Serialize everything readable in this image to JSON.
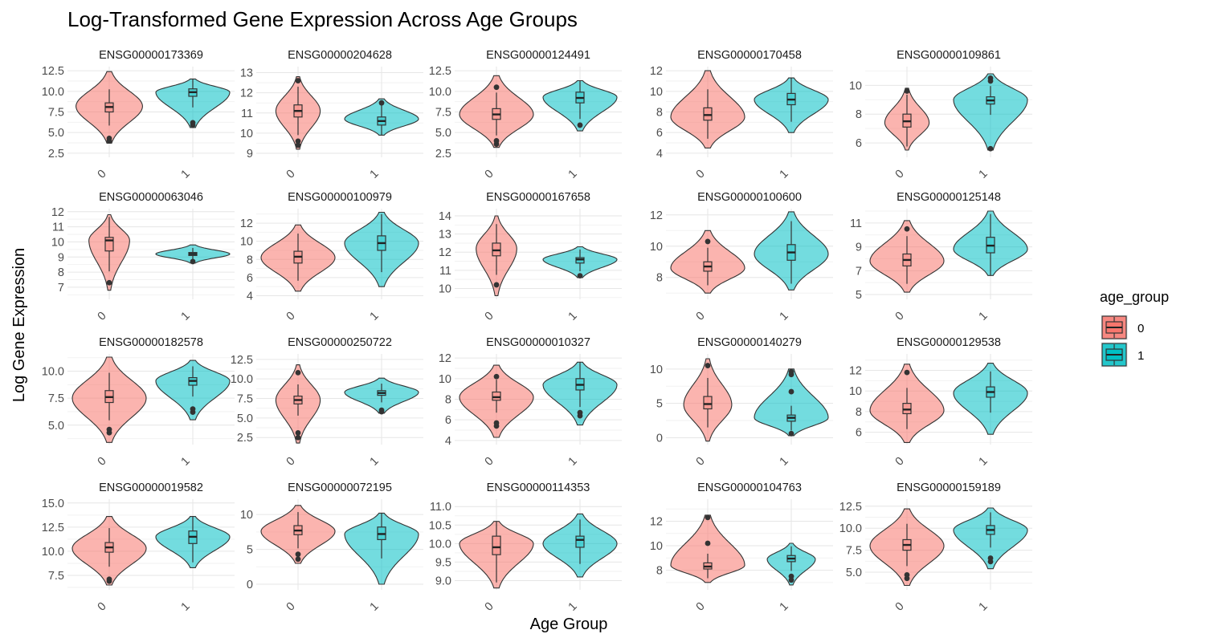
{
  "chart_data": {
    "type": "violin",
    "title": "Log-Transformed Gene Expression Across Age Groups",
    "xlabel": "Age Group",
    "ylabel": "Log Gene Expression",
    "categories": [
      "0",
      "1"
    ],
    "legend": {
      "title": "age_group",
      "position": "right",
      "entries": [
        {
          "label": "0",
          "color": "#F8766D"
        },
        {
          "label": "1",
          "color": "#00BFC4"
        }
      ]
    },
    "panels": [
      {
        "gene": "ENSG00000173369",
        "ylim": [
          2,
          13
        ],
        "ticks": [
          "2.5",
          "5.0",
          "7.5",
          "10.0",
          "12.5"
        ],
        "tick_values": [
          2.5,
          5,
          7.5,
          10,
          12.5
        ],
        "groups": [
          {
            "min": 3.7,
            "max": 12.4,
            "q1": 7.5,
            "median": 8.1,
            "q3": 8.6,
            "peak": 8.2,
            "width": 0.9,
            "outliers": [
              4.0,
              4.3
            ]
          },
          {
            "min": 5.6,
            "max": 11.5,
            "q1": 9.4,
            "median": 9.9,
            "q3": 10.3,
            "peak": 9.9,
            "width": 1.0,
            "outliers": [
              5.9,
              6.2
            ]
          }
        ]
      },
      {
        "gene": "ENSG00000204628",
        "ylim": [
          8.8,
          13.3
        ],
        "ticks": [
          "9",
          "10",
          "11",
          "12",
          "13"
        ],
        "tick_values": [
          9,
          10,
          11,
          12,
          13
        ],
        "groups": [
          {
            "min": 9.2,
            "max": 12.8,
            "q1": 10.8,
            "median": 11.1,
            "q3": 11.4,
            "peak": 11.1,
            "width": 0.6,
            "outliers": [
              9.4,
              9.6,
              12.6
            ]
          },
          {
            "min": 9.9,
            "max": 11.7,
            "q1": 10.4,
            "median": 10.6,
            "q3": 10.8,
            "peak": 10.7,
            "width": 1.0,
            "outliers": [
              11.5
            ]
          }
        ]
      },
      {
        "gene": "ENSG00000124491",
        "ylim": [
          2,
          13
        ],
        "ticks": [
          "2.5",
          "5.0",
          "7.5",
          "10.0",
          "12.5"
        ],
        "tick_values": [
          2.5,
          5,
          7.5,
          10,
          12.5
        ],
        "groups": [
          {
            "min": 3.2,
            "max": 11.9,
            "q1": 6.6,
            "median": 7.2,
            "q3": 7.9,
            "peak": 7.2,
            "width": 1.0,
            "outliers": [
              3.6,
              4.0,
              10.5
            ]
          },
          {
            "min": 5.2,
            "max": 11.3,
            "q1": 8.6,
            "median": 9.2,
            "q3": 9.9,
            "peak": 9.3,
            "width": 1.0,
            "outliers": [
              5.9
            ]
          }
        ]
      },
      {
        "gene": "ENSG00000170458",
        "ylim": [
          3.6,
          12.4
        ],
        "ticks": [
          "4",
          "6",
          "8",
          "10",
          "12"
        ],
        "tick_values": [
          4,
          6,
          8,
          10,
          12
        ],
        "groups": [
          {
            "min": 4.5,
            "max": 12.0,
            "q1": 7.2,
            "median": 7.7,
            "q3": 8.4,
            "peak": 7.5,
            "width": 1.0,
            "outliers": []
          },
          {
            "min": 6.0,
            "max": 11.3,
            "q1": 8.7,
            "median": 9.2,
            "q3": 9.8,
            "peak": 9.2,
            "width": 1.0,
            "outliers": []
          }
        ]
      },
      {
        "gene": "ENSG00000109861",
        "ylim": [
          5.0,
          11.3
        ],
        "ticks": [
          "6",
          "8",
          "10"
        ],
        "tick_values": [
          6,
          8,
          10
        ],
        "groups": [
          {
            "min": 5.5,
            "max": 9.8,
            "q1": 7.1,
            "median": 7.5,
            "q3": 8.0,
            "peak": 7.4,
            "width": 0.6,
            "outliers": [
              9.6
            ]
          },
          {
            "min": 5.5,
            "max": 10.8,
            "q1": 8.7,
            "median": 8.95,
            "q3": 9.2,
            "peak": 9.0,
            "width": 1.0,
            "outliers": [
              5.6,
              10.3,
              10.5
            ]
          }
        ]
      },
      {
        "gene": "ENSG00000063046",
        "ylim": [
          6.2,
          12.2
        ],
        "ticks": [
          "7",
          "8",
          "9",
          "10",
          "11",
          "12"
        ],
        "tick_values": [
          7,
          8,
          9,
          10,
          11,
          12
        ],
        "groups": [
          {
            "min": 6.8,
            "max": 11.8,
            "q1": 9.4,
            "median": 10.1,
            "q3": 10.3,
            "peak": 10.1,
            "width": 0.55,
            "outliers": [
              7.3
            ]
          },
          {
            "min": 8.6,
            "max": 9.8,
            "q1": 9.1,
            "median": 9.2,
            "q3": 9.3,
            "peak": 9.2,
            "width": 1.0,
            "outliers": [
              8.7
            ]
          }
        ]
      },
      {
        "gene": "ENSG00000100979",
        "ylim": [
          3.6,
          13.6
        ],
        "ticks": [
          "4",
          "6",
          "8",
          "10",
          "12"
        ],
        "tick_values": [
          4,
          6,
          8,
          10,
          12
        ],
        "groups": [
          {
            "min": 4.5,
            "max": 11.8,
            "q1": 7.6,
            "median": 8.3,
            "q3": 8.9,
            "peak": 8.2,
            "width": 1.0,
            "outliers": []
          },
          {
            "min": 5.0,
            "max": 13.2,
            "q1": 9.0,
            "median": 9.8,
            "q3": 10.6,
            "peak": 9.8,
            "width": 1.0,
            "outliers": []
          }
        ]
      },
      {
        "gene": "ENSG00000167658",
        "ylim": [
          9.4,
          14.4
        ],
        "ticks": [
          "10",
          "11",
          "12",
          "13",
          "14"
        ],
        "tick_values": [
          10,
          11,
          12,
          13,
          14
        ],
        "groups": [
          {
            "min": 9.6,
            "max": 14.0,
            "q1": 11.8,
            "median": 12.1,
            "q3": 12.5,
            "peak": 12.2,
            "width": 0.55,
            "outliers": [
              10.2
            ]
          },
          {
            "min": 10.6,
            "max": 12.3,
            "q1": 11.4,
            "median": 11.6,
            "q3": 11.7,
            "peak": 11.6,
            "width": 1.0,
            "outliers": [
              10.7
            ]
          }
        ]
      },
      {
        "gene": "ENSG00000100600",
        "ylim": [
          6.6,
          12.4
        ],
        "ticks": [
          "8",
          "10",
          "12"
        ],
        "tick_values": [
          8,
          10,
          12
        ],
        "groups": [
          {
            "min": 7.0,
            "max": 11.0,
            "q1": 8.4,
            "median": 8.7,
            "q3": 9.0,
            "peak": 8.6,
            "width": 1.0,
            "outliers": [
              10.3
            ]
          },
          {
            "min": 7.2,
            "max": 12.2,
            "q1": 9.1,
            "median": 9.6,
            "q3": 10.1,
            "peak": 9.5,
            "width": 1.0,
            "outliers": []
          }
        ]
      },
      {
        "gene": "ENSG00000125148",
        "ylim": [
          4.6,
          12.2
        ],
        "ticks": [
          "5",
          "7",
          "9",
          "11"
        ],
        "tick_values": [
          5,
          7,
          9,
          11
        ],
        "groups": [
          {
            "min": 5.2,
            "max": 11.2,
            "q1": 7.4,
            "median": 7.9,
            "q3": 8.4,
            "peak": 7.8,
            "width": 1.0,
            "outliers": [
              10.5
            ]
          },
          {
            "min": 6.6,
            "max": 12.0,
            "q1": 8.5,
            "median": 9.1,
            "q3": 9.8,
            "peak": 8.8,
            "width": 1.0,
            "outliers": []
          }
        ]
      },
      {
        "gene": "ENSG00000182578",
        "ylim": [
          3.2,
          11.6
        ],
        "ticks": [
          "5.0",
          "7.5",
          "10.0"
        ],
        "tick_values": [
          5,
          7.5,
          10
        ],
        "groups": [
          {
            "min": 3.4,
            "max": 11.3,
            "q1": 7.1,
            "median": 7.6,
            "q3": 8.2,
            "peak": 7.5,
            "width": 1.0,
            "outliers": [
              4.3,
              4.6
            ]
          },
          {
            "min": 5.5,
            "max": 11.0,
            "q1": 8.7,
            "median": 9.1,
            "q3": 9.4,
            "peak": 9.1,
            "width": 1.0,
            "outliers": [
              6.2,
              6.5
            ]
          }
        ]
      },
      {
        "gene": "ENSG00000250722",
        "ylim": [
          1.6,
          13.2
        ],
        "ticks": [
          "2.5",
          "5.0",
          "7.5",
          "10.0",
          "12.5"
        ],
        "tick_values": [
          2.5,
          5,
          7.5,
          10,
          12.5
        ],
        "groups": [
          {
            "min": 1.8,
            "max": 11.8,
            "q1": 6.8,
            "median": 7.3,
            "q3": 7.8,
            "peak": 7.3,
            "width": 0.6,
            "outliers": [
              2.5,
              3.1,
              10.8
            ]
          },
          {
            "min": 5.6,
            "max": 10.1,
            "q1": 7.9,
            "median": 8.2,
            "q3": 8.5,
            "peak": 8.3,
            "width": 1.0,
            "outliers": [
              5.8,
              6.0
            ]
          }
        ]
      },
      {
        "gene": "ENSG00000010327",
        "ylim": [
          3.6,
          12.4
        ],
        "ticks": [
          "4",
          "6",
          "8",
          "10",
          "12"
        ],
        "tick_values": [
          4,
          6,
          8,
          10,
          12
        ],
        "groups": [
          {
            "min": 4.3,
            "max": 11.3,
            "q1": 7.9,
            "median": 8.2,
            "q3": 8.7,
            "peak": 8.2,
            "width": 1.0,
            "outliers": [
              5.4,
              5.7,
              10.2
            ]
          },
          {
            "min": 5.5,
            "max": 11.6,
            "q1": 8.9,
            "median": 9.4,
            "q3": 10.0,
            "peak": 9.4,
            "width": 1.0,
            "outliers": [
              6.4,
              6.7
            ]
          }
        ]
      },
      {
        "gene": "ENSG00000140279",
        "ylim": [
          -1.0,
          12.2
        ],
        "ticks": [
          "0",
          "5",
          "10"
        ],
        "tick_values": [
          0,
          5,
          10
        ],
        "groups": [
          {
            "min": -0.5,
            "max": 11.5,
            "q1": 4.2,
            "median": 4.9,
            "q3": 6.0,
            "peak": 4.8,
            "width": 0.65,
            "outliers": [
              10.5
            ]
          },
          {
            "min": 0.3,
            "max": 10.0,
            "q1": 2.4,
            "median": 2.9,
            "q3": 3.3,
            "peak": 2.9,
            "width": 1.0,
            "outliers": [
              0.6,
              6.7,
              9.2,
              9.6
            ]
          }
        ]
      },
      {
        "gene": "ENSG00000129538",
        "ylim": [
          4.8,
          13.6
        ],
        "ticks": [
          "6",
          "8",
          "10",
          "12"
        ],
        "tick_values": [
          6,
          8,
          10,
          12
        ],
        "groups": [
          {
            "min": 5.0,
            "max": 12.6,
            "q1": 7.8,
            "median": 8.2,
            "q3": 8.8,
            "peak": 8.1,
            "width": 1.0,
            "outliers": [
              11.8
            ]
          },
          {
            "min": 5.8,
            "max": 12.7,
            "q1": 9.4,
            "median": 9.9,
            "q3": 10.4,
            "peak": 9.8,
            "width": 1.0,
            "outliers": []
          }
        ]
      },
      {
        "gene": "ENSG00000019582",
        "ylim": [
          6.0,
          15.4
        ],
        "ticks": [
          "7.5",
          "10.0",
          "12.5",
          "15.0"
        ],
        "tick_values": [
          7.5,
          10,
          12.5,
          15
        ],
        "groups": [
          {
            "min": 6.5,
            "max": 13.6,
            "q1": 9.9,
            "median": 10.4,
            "q3": 10.9,
            "peak": 10.3,
            "width": 1.0,
            "outliers": [
              6.9,
              7.1
            ]
          },
          {
            "min": 8.3,
            "max": 13.6,
            "q1": 10.8,
            "median": 11.5,
            "q3": 12.1,
            "peak": 11.5,
            "width": 1.0,
            "outliers": []
          }
        ]
      },
      {
        "gene": "ENSG00000072195",
        "ylim": [
          -0.8,
          12.2
        ],
        "ticks": [
          "0",
          "5",
          "10"
        ],
        "tick_values": [
          0,
          5,
          10
        ],
        "groups": [
          {
            "min": 3.0,
            "max": 11.3,
            "q1": 7.1,
            "median": 7.7,
            "q3": 8.4,
            "peak": 7.6,
            "width": 1.0,
            "outliers": [
              3.6,
              4.3
            ]
          },
          {
            "min": 0.0,
            "max": 10.2,
            "q1": 6.4,
            "median": 7.2,
            "q3": 8.2,
            "peak": 7.2,
            "width": 1.0,
            "outliers": []
          }
        ]
      },
      {
        "gene": "ENSG00000114353",
        "ylim": [
          8.75,
          11.2
        ],
        "ticks": [
          "9.0",
          "9.5",
          "10.0",
          "10.5",
          "11.0"
        ],
        "tick_values": [
          9,
          9.5,
          10,
          10.5,
          11
        ],
        "groups": [
          {
            "min": 8.8,
            "max": 10.6,
            "q1": 9.7,
            "median": 9.9,
            "q3": 10.2,
            "peak": 10.0,
            "width": 1.0,
            "outliers": []
          },
          {
            "min": 9.1,
            "max": 10.8,
            "q1": 9.9,
            "median": 10.1,
            "q3": 10.2,
            "peak": 10.0,
            "width": 1.0,
            "outliers": []
          }
        ]
      },
      {
        "gene": "ENSG00000104763",
        "ylim": [
          6.4,
          13.8
        ],
        "ticks": [
          "8",
          "10",
          "12"
        ],
        "tick_values": [
          8,
          10,
          12
        ],
        "groups": [
          {
            "min": 7.0,
            "max": 12.5,
            "q1": 8.1,
            "median": 8.3,
            "q3": 8.6,
            "peak": 8.4,
            "width": 1.0,
            "outliers": [
              10.2,
              12.3
            ]
          },
          {
            "min": 6.8,
            "max": 10.2,
            "q1": 8.7,
            "median": 8.95,
            "q3": 9.2,
            "peak": 8.9,
            "width": 0.65,
            "outliers": [
              7.2,
              7.5
            ]
          }
        ]
      },
      {
        "gene": "ENSG00000159189",
        "ylim": [
          3.0,
          13.3
        ],
        "ticks": [
          "5.0",
          "7.5",
          "10.0",
          "12.5"
        ],
        "tick_values": [
          5,
          7.5,
          10,
          12.5
        ],
        "groups": [
          {
            "min": 3.5,
            "max": 12.2,
            "q1": 7.5,
            "median": 8.1,
            "q3": 8.7,
            "peak": 8.0,
            "width": 1.0,
            "outliers": [
              4.3,
              4.7
            ]
          },
          {
            "min": 5.4,
            "max": 12.3,
            "q1": 9.3,
            "median": 9.8,
            "q3": 10.3,
            "peak": 9.8,
            "width": 1.0,
            "outliers": [
              6.2,
              6.6
            ]
          }
        ]
      }
    ]
  }
}
